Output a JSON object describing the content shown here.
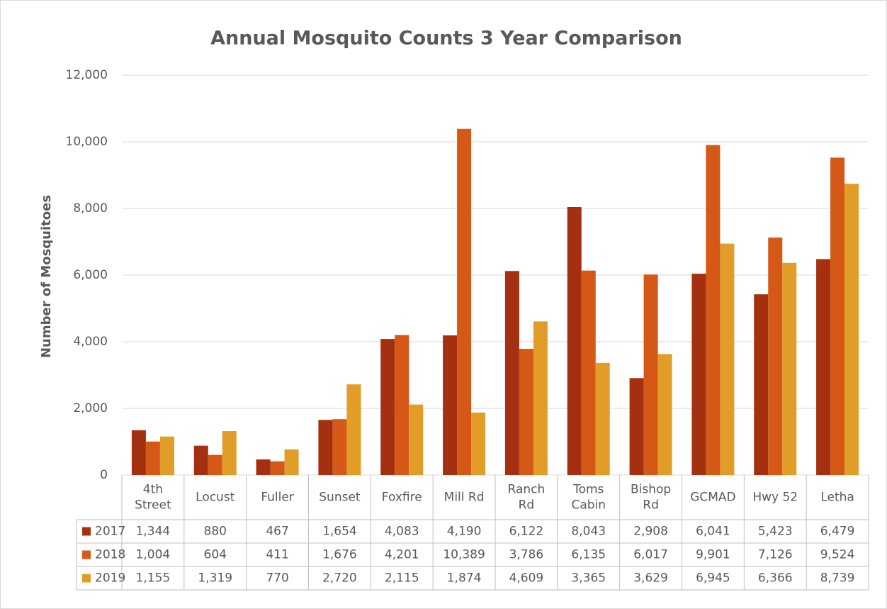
{
  "chart_data": {
    "type": "bar",
    "title": "Annual Mosquito Counts 3 Year Comparison",
    "y_label": "Number of Mosquitoes",
    "categories": [
      "4th Street",
      "Locust",
      "Fuller",
      "Sunset",
      "Foxfire",
      "Mill Rd",
      "Ranch Rd",
      "Toms Cabin",
      "Bishop Rd",
      "GCMAD",
      "Hwy 52",
      "Letha"
    ],
    "series": [
      {
        "name": "2017",
        "color": "#a5300f",
        "values": [
          1344,
          880,
          467,
          1654,
          4083,
          4190,
          6122,
          8043,
          2908,
          6041,
          5423,
          6479
        ],
        "value_labels": [
          "1,344",
          "880",
          "467",
          "1,654",
          "4,083",
          "4,190",
          "6,122",
          "8,043",
          "2,908",
          "6,041",
          "5,423",
          "6,479"
        ]
      },
      {
        "name": "2018",
        "color": "#d55816",
        "values": [
          1004,
          604,
          411,
          1676,
          4201,
          10389,
          3786,
          6135,
          6017,
          9901,
          7126,
          9524
        ],
        "value_labels": [
          "1,004",
          "604",
          "411",
          "1,676",
          "4,201",
          "10,389",
          "3,786",
          "6,135",
          "6,017",
          "9,901",
          "7,126",
          "9,524"
        ]
      },
      {
        "name": "2019",
        "color": "#e29d29",
        "values": [
          1155,
          1319,
          770,
          2720,
          2115,
          1874,
          4609,
          3365,
          3629,
          6945,
          6366,
          8739
        ],
        "value_labels": [
          "1,155",
          "1,319",
          "770",
          "2,720",
          "2,115",
          "1,874",
          "4,609",
          "3,365",
          "3,629",
          "6,945",
          "6,366",
          "8,739"
        ]
      }
    ],
    "ylim": [
      0,
      12000
    ],
    "yticks": [
      0,
      {
        "value": 2000,
        "label": "2,000"
      },
      {
        "value": 4000,
        "label": "4,000"
      },
      {
        "value": 6000,
        "label": "6,000"
      },
      {
        "value": 8000,
        "label": "8,000"
      },
      {
        "value": 10000,
        "label": "10,000"
      },
      {
        "value": 12000,
        "label": "12,000"
      }
    ],
    "grid": true,
    "legend": "table"
  }
}
